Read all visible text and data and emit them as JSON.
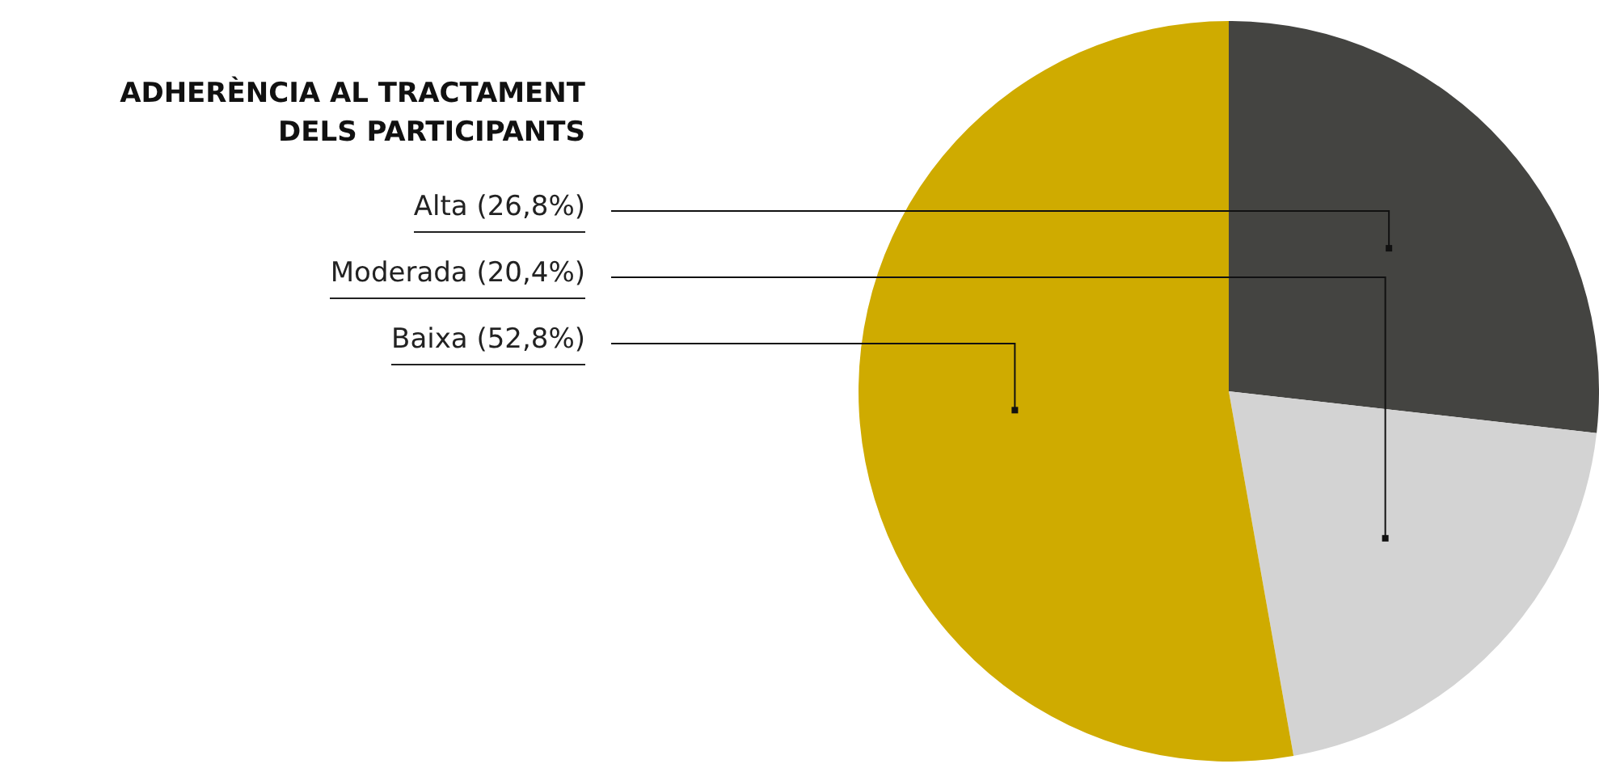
{
  "chart_data": {
    "type": "pie",
    "title": "ADHERÈNCIA AL TRACTAMENT DELS PARTICIPANTS",
    "categories": [
      "Alta (26,8%)",
      "Moderada (20,4%)",
      "Baixa (52,8%)"
    ],
    "values": [
      26.8,
      20.4,
      52.8
    ],
    "colors": [
      "#444441",
      "#d3d3d3",
      "#cfab00"
    ]
  }
}
